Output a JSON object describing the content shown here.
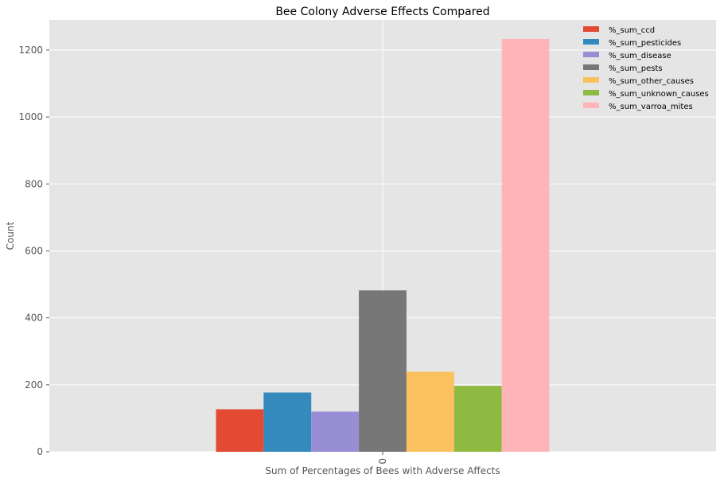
{
  "chart_data": {
    "type": "bar",
    "title": "Bee Colony Adverse Effects Compared",
    "xlabel": "Sum of Percentages of Bees with Adverse Affects",
    "ylabel": "Count",
    "categories": [
      "0"
    ],
    "ylim": [
      0,
      1290
    ],
    "yticks": [
      0,
      200,
      400,
      600,
      800,
      1000,
      1200
    ],
    "grid": true,
    "legend_position": "top-right",
    "series": [
      {
        "name": "%_sum_ccd",
        "values": [
          127
        ],
        "color": "#e24a33"
      },
      {
        "name": "%_sum_pesticides",
        "values": [
          177
        ],
        "color": "#348abd"
      },
      {
        "name": "%_sum_disease",
        "values": [
          120
        ],
        "color": "#988ed5"
      },
      {
        "name": "%_sum_pests",
        "values": [
          482
        ],
        "color": "#777777"
      },
      {
        "name": "%_sum_other_causes",
        "values": [
          239
        ],
        "color": "#fbc15e"
      },
      {
        "name": "%_sum_unknown_causes",
        "values": [
          197
        ],
        "color": "#8eba42"
      },
      {
        "name": "%_sum_varroa_mites",
        "values": [
          1233
        ],
        "color": "#ffb5b8"
      }
    ],
    "colors": {
      "plot_background": "#e5e5e5",
      "grid": "#ffffff"
    }
  }
}
